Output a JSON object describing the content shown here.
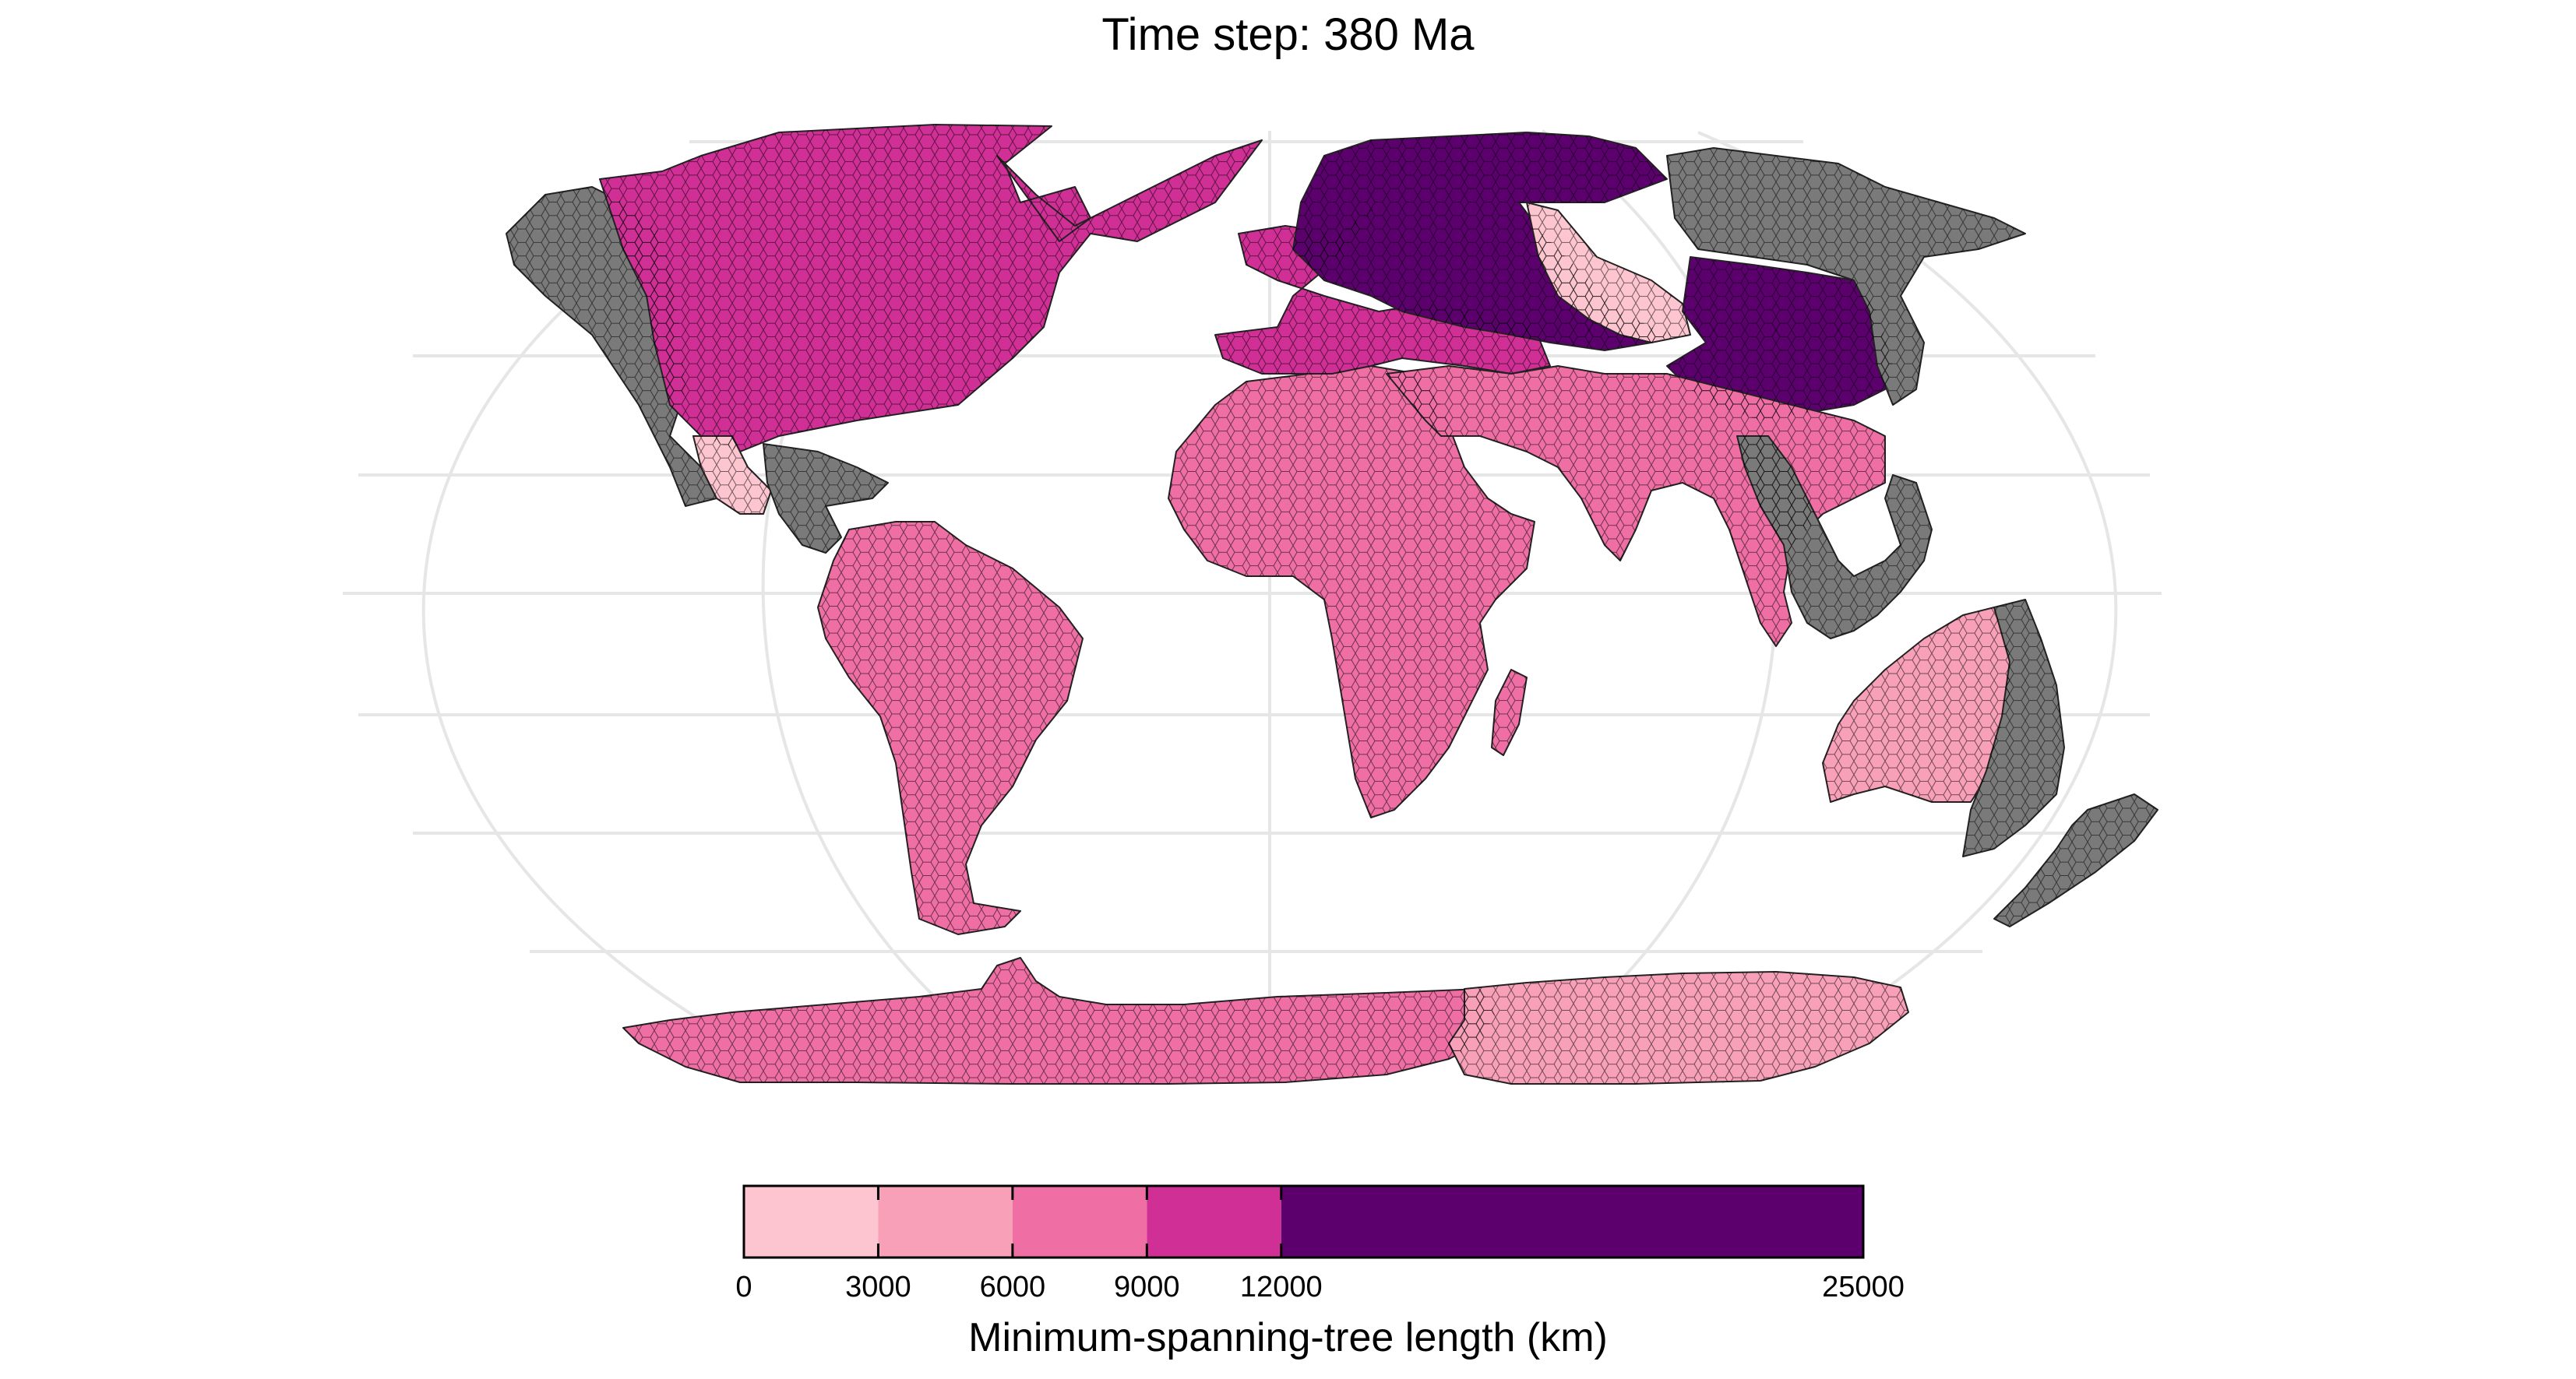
{
  "title": "Time step: 380 Ma",
  "legend": {
    "title": "Minimum-spanning-tree length (km)",
    "breaks": [
      0,
      3000,
      6000,
      9000,
      12000,
      25000
    ],
    "tick_labels": [
      "0",
      "3000",
      "6000",
      "9000",
      "12000",
      "25000"
    ],
    "colors": [
      "#fcc5cf",
      "#f8a0b8",
      "#ef6fa4",
      "#d02f96",
      "#5b006d"
    ]
  },
  "no_data_color": "#7a7a7a",
  "regions": [
    {
      "name": "north-america",
      "class": 3
    },
    {
      "name": "alaska-west",
      "class": null
    },
    {
      "name": "mexico",
      "class": 0
    },
    {
      "name": "caribbean",
      "class": null
    },
    {
      "name": "south-america",
      "class": 2
    },
    {
      "name": "africa",
      "class": 2
    },
    {
      "name": "madagascar",
      "class": 2
    },
    {
      "name": "europe",
      "class": 3
    },
    {
      "name": "siberia",
      "class": 4
    },
    {
      "name": "central-asia",
      "class": 0
    },
    {
      "name": "east-asia",
      "class": 4
    },
    {
      "name": "asia-fringe",
      "class": null
    },
    {
      "name": "south-asia",
      "class": 2
    },
    {
      "name": "southeast-asia",
      "class": null
    },
    {
      "name": "australia-west",
      "class": 1
    },
    {
      "name": "australia-east",
      "class": null
    },
    {
      "name": "new-zealand",
      "class": null
    },
    {
      "name": "antarctica-west",
      "class": 2
    },
    {
      "name": "antarctica-east",
      "class": 1
    }
  ]
}
